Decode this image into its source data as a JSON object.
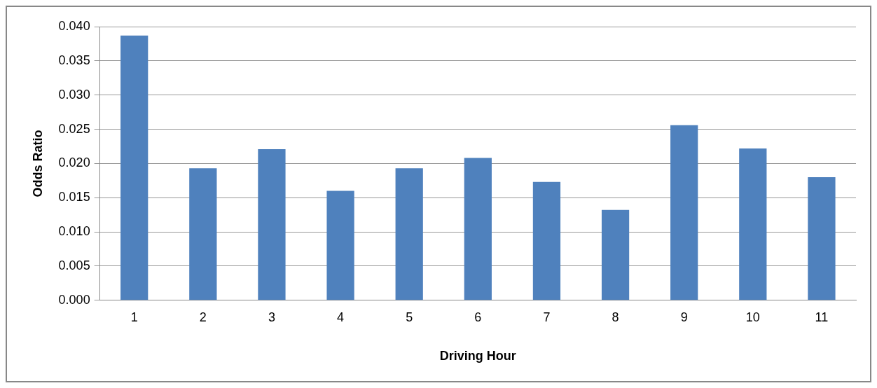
{
  "chart_data": {
    "type": "bar",
    "xlabel": "Driving Hour",
    "ylabel": "Odds Ratio",
    "categories": [
      "1",
      "2",
      "3",
      "4",
      "5",
      "6",
      "7",
      "8",
      "9",
      "10",
      "11"
    ],
    "values": [
      0.0387,
      0.0193,
      0.0221,
      0.016,
      0.0193,
      0.0208,
      0.0173,
      0.0132,
      0.0256,
      0.0222,
      0.018
    ],
    "color": "#4f81bd",
    "ylim": [
      0,
      0.04
    ],
    "yticks": [
      {
        "value": 0,
        "label": "0.000"
      },
      {
        "value": 0.005,
        "label": "0.005"
      },
      {
        "value": 0.01,
        "label": "0.010"
      },
      {
        "value": 0.015,
        "label": "0.015"
      },
      {
        "value": 0.02,
        "label": "0.020"
      },
      {
        "value": 0.025,
        "label": "0.025"
      },
      {
        "value": 0.03,
        "label": "0.030"
      },
      {
        "value": 0.035,
        "label": "0.035"
      },
      {
        "value": 0.04,
        "label": "0.040"
      }
    ],
    "grid": "y",
    "legend": false
  }
}
